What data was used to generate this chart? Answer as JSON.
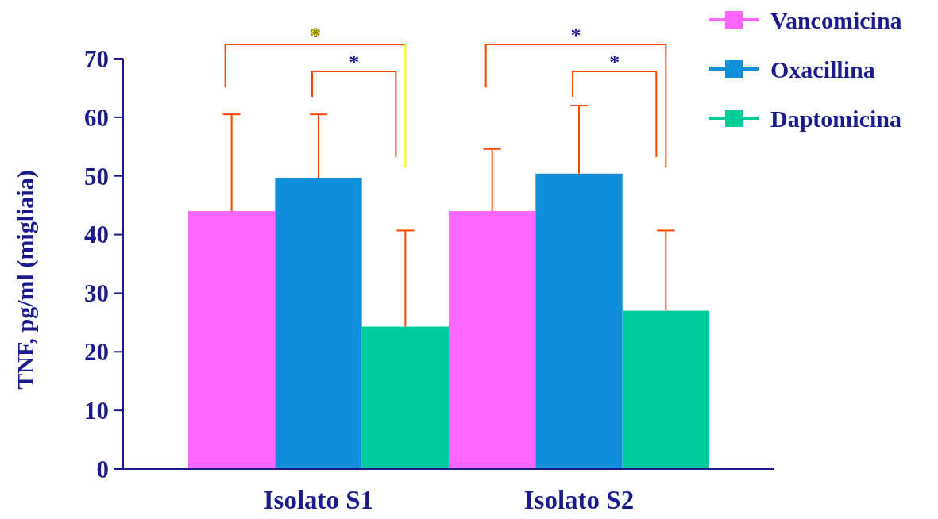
{
  "chart_data": {
    "type": "bar",
    "ylabel": "TNF, pg/ml (migliaia)",
    "categories": [
      "Isolato S1",
      "Isolato S2"
    ],
    "series": [
      {
        "name": "Vancomicina",
        "color": "#ff66ff",
        "values": [
          44,
          44
        ],
        "errors": [
          [
            44,
            60.5
          ],
          [
            44,
            54.6
          ]
        ]
      },
      {
        "name": "Oxacillina",
        "color": "#118ed9",
        "values": [
          49.7,
          50.4
        ],
        "errors": [
          [
            49.7,
            60.5
          ],
          [
            50.4,
            62
          ]
        ]
      },
      {
        "name": "Daptomicina",
        "color": "#00cc99",
        "values": [
          24.3,
          27
        ],
        "errors": [
          [
            24.3,
            40.7
          ],
          [
            27,
            40.7
          ]
        ]
      }
    ],
    "ylim": [
      0,
      70
    ],
    "yticks": [
      0,
      10,
      20,
      30,
      40,
      50,
      60,
      70
    ],
    "grid": false,
    "legend": "top right",
    "annotations": [
      "*",
      "*",
      "*",
      "*"
    ]
  }
}
